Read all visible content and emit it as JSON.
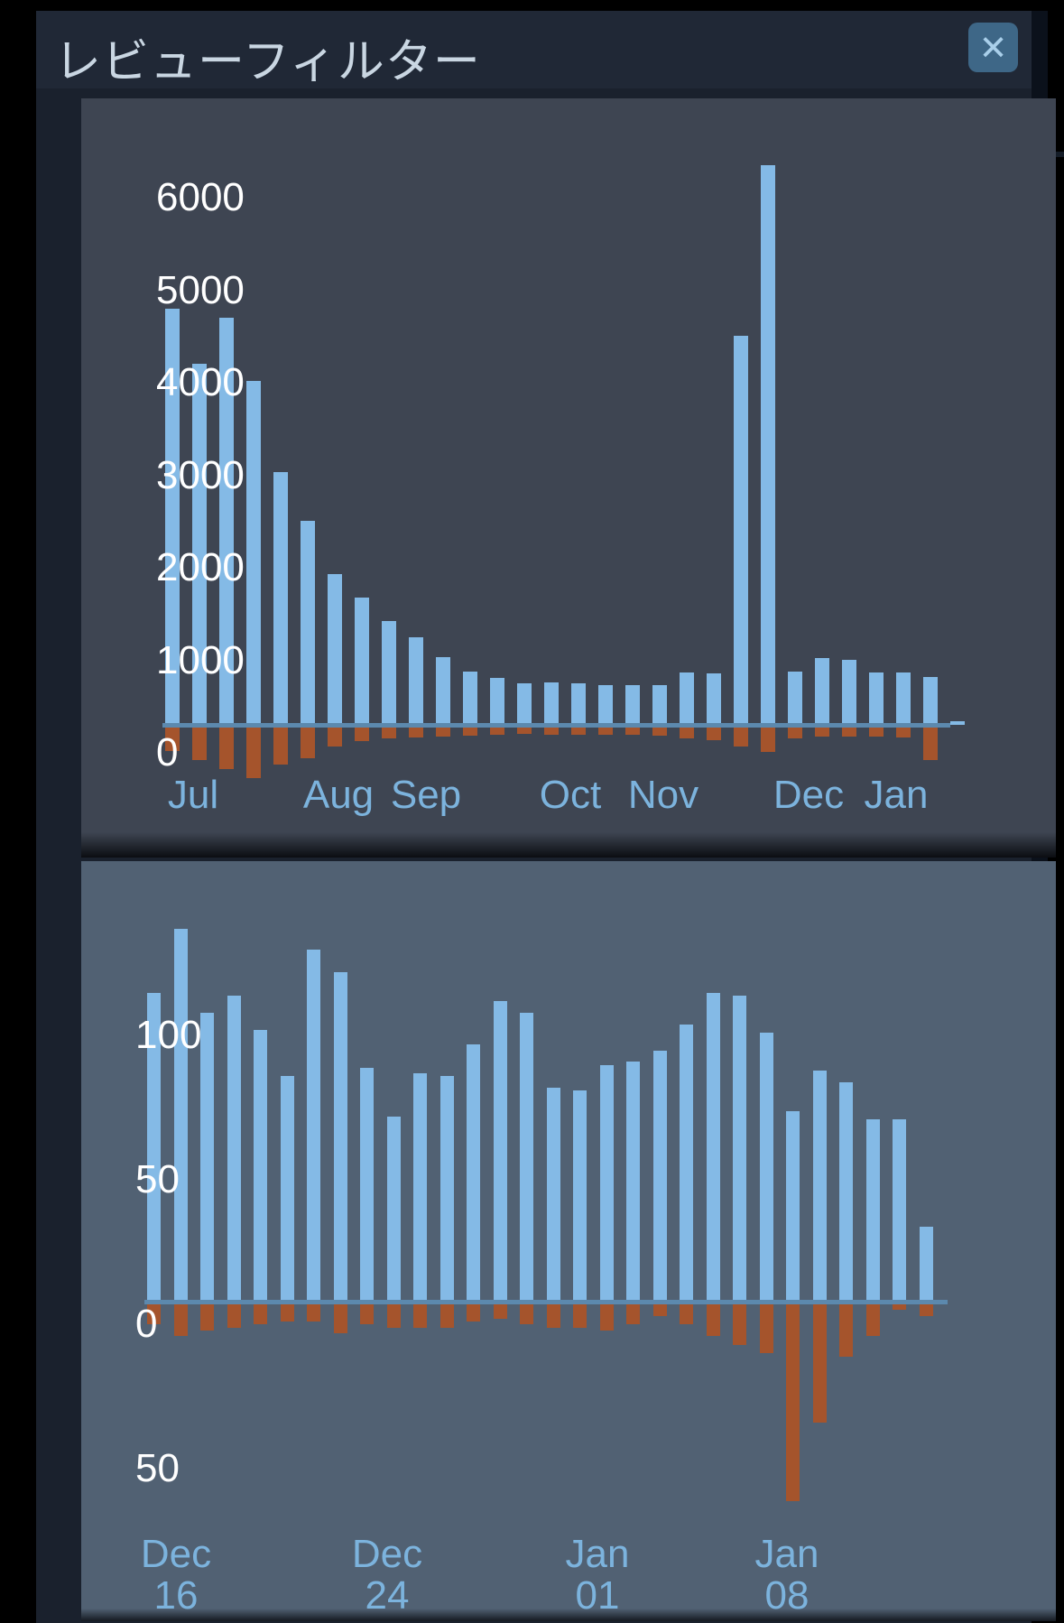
{
  "dialog": {
    "title": "レビューフィルター",
    "close_icon": "✕"
  },
  "colors": {
    "page_background": "#000000",
    "dialog_background": "#1a212d",
    "header_background": "#202836",
    "panel_top_background": "#3e4552",
    "panel_bottom_background": "#516173",
    "positive_bar": "#84bae6",
    "negative_bar": "#a5542c",
    "axis_line": "#5c89ae",
    "y_label_text": "#ffffff",
    "x_label_text": "#7cb3dd",
    "title_text": "#c9d6e2",
    "close_button_background": "#3e6787",
    "close_icon_color": "#a9cfea"
  },
  "chart_data": [
    {
      "id": "all-reviews-histogram",
      "type": "bar",
      "title": "",
      "xlabel": "",
      "ylabel": "",
      "bin": "weekly",
      "ylim": [
        -600,
        6500
      ],
      "grid": false,
      "legend": "none",
      "x_tick_labels": [
        "Jul",
        "Aug",
        "Sep",
        "Oct",
        "Nov",
        "Dec",
        "Jan"
      ],
      "y_ticks": [
        {
          "value": 6000,
          "label": "6000"
        },
        {
          "value": 5000,
          "label": "5000"
        },
        {
          "value": 4000,
          "label": "4000"
        },
        {
          "value": 3000,
          "label": "3000"
        },
        {
          "value": 2000,
          "label": "2000"
        },
        {
          "value": 1000,
          "label": "1000"
        },
        {
          "value": 0,
          "label": "0"
        }
      ],
      "series": [
        {
          "name": "positive",
          "color": "#84bae6",
          "values": [
            4500,
            3900,
            4400,
            3720,
            2730,
            2200,
            1630,
            1380,
            1120,
            950,
            730,
            580,
            510,
            450,
            460,
            450,
            430,
            430,
            430,
            570,
            560,
            4200,
            6050,
            580,
            720,
            700,
            570,
            570,
            520,
            30
          ]
        },
        {
          "name": "negative",
          "color": "#a5542c",
          "values": [
            -250,
            -350,
            -450,
            -550,
            -400,
            -330,
            -200,
            -150,
            -120,
            -110,
            -100,
            -90,
            -80,
            -70,
            -80,
            -80,
            -80,
            -80,
            -90,
            -120,
            -140,
            -200,
            -260,
            -120,
            -100,
            -100,
            -100,
            -110,
            -350,
            0
          ]
        }
      ]
    },
    {
      "id": "recent-reviews-histogram",
      "type": "bar",
      "title": "",
      "xlabel": "",
      "ylabel": "",
      "bin": "daily",
      "ylim": [
        -75,
        135
      ],
      "grid": false,
      "legend": "none",
      "x_tick_labels": [
        [
          "Dec",
          "16"
        ],
        [
          "Dec",
          "24"
        ],
        [
          "Jan",
          "01"
        ],
        [
          "Jan",
          "08"
        ]
      ],
      "y_ticks": [
        {
          "value": 100,
          "label": "100"
        },
        {
          "value": 50,
          "label": "50"
        },
        {
          "value": 0,
          "label": "0"
        },
        {
          "value": -50,
          "label": "50"
        }
      ],
      "series": [
        {
          "name": "positive",
          "color": "#84bae6",
          "values": [
            107,
            129,
            100,
            106,
            94,
            78,
            122,
            114,
            81,
            64,
            79,
            78,
            89,
            104,
            100,
            74,
            73,
            82,
            83,
            87,
            96,
            107,
            106,
            93,
            66,
            80,
            76,
            63,
            63,
            26
          ]
        },
        {
          "name": "negative",
          "color": "#a5542c",
          "values": [
            -7,
            -11,
            -9,
            -8,
            -7,
            -6,
            -6,
            -10,
            -7,
            -8,
            -8,
            -8,
            -6,
            -5,
            -7,
            -8,
            -8,
            -9,
            -7,
            -4,
            -7,
            -11,
            -14,
            -17,
            -68,
            -41,
            -18,
            -11,
            -2,
            -4
          ]
        }
      ]
    }
  ]
}
